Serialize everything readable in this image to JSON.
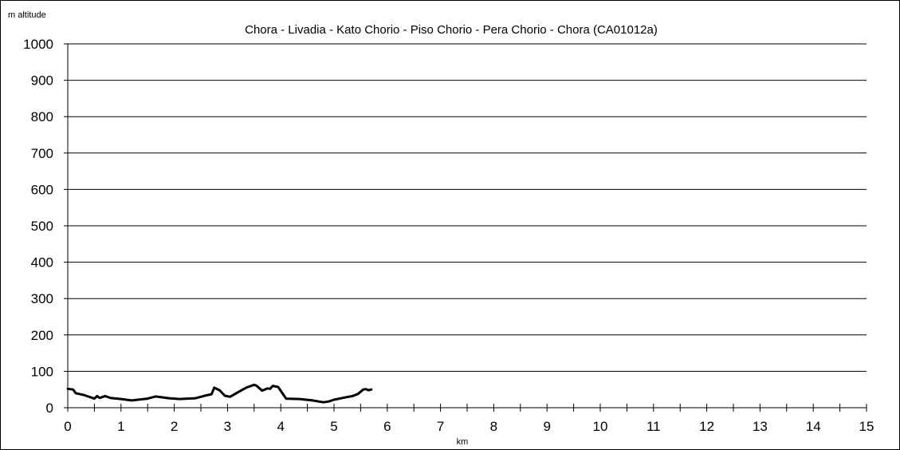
{
  "chart_data": {
    "type": "line",
    "title": "Chora - Livadia - Kato Chorio - Piso Chorio - Pera Chorio - Chora (CA01012a)",
    "xlabel": "km",
    "ylabel": "m altitude",
    "xlim": [
      0,
      15
    ],
    "ylim": [
      0,
      1000
    ],
    "x_ticks": [
      0,
      1,
      2,
      3,
      4,
      5,
      6,
      7,
      8,
      9,
      10,
      11,
      12,
      13,
      14,
      15
    ],
    "y_ticks": [
      0,
      100,
      200,
      300,
      400,
      500,
      600,
      700,
      800,
      900,
      1000
    ],
    "grid": "horizontal",
    "legend": "none",
    "line_color": "#000000",
    "series": [
      {
        "x": [
          0,
          0.1,
          0.15,
          0.3,
          0.5,
          0.55,
          0.6,
          0.7,
          0.8,
          1.0,
          1.2,
          1.5,
          1.65,
          1.9,
          2.1,
          2.4,
          2.6,
          2.7,
          2.75,
          2.85,
          2.95,
          3.05,
          3.2,
          3.35,
          3.5,
          3.55,
          3.65,
          3.75,
          3.8,
          3.85,
          3.95,
          4.1,
          4.35,
          4.6,
          4.8,
          4.9,
          5.0,
          5.2,
          5.35,
          5.45,
          5.55,
          5.6,
          5.65,
          5.7
        ],
        "y": [
          52,
          50,
          40,
          35,
          25,
          32,
          27,
          32,
          27,
          24,
          20,
          25,
          31,
          26,
          24,
          26,
          34,
          37,
          55,
          48,
          33,
          30,
          43,
          55,
          63,
          60,
          47,
          53,
          52,
          60,
          57,
          25,
          24,
          20,
          15,
          17,
          22,
          28,
          32,
          38,
          50,
          51,
          48,
          50
        ]
      }
    ]
  }
}
